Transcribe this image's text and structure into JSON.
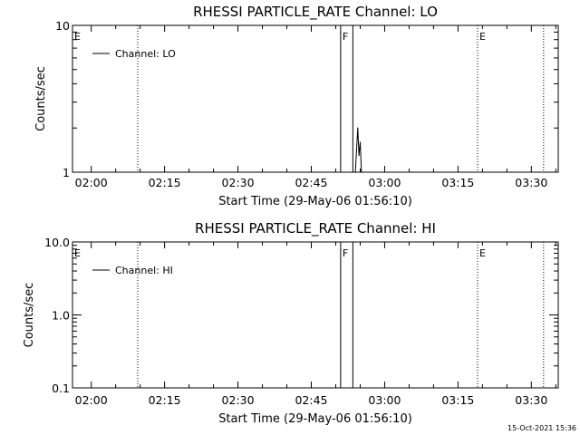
{
  "chart_data": [
    {
      "type": "line",
      "title": "RHESSI PARTICLE_RATE Channel: LO",
      "xlabel": "Start Time (29-May-06 01:56:10)",
      "ylabel": "Counts/sec",
      "yscale": "log",
      "xlim": [
        "01:56:10",
        "03:35:30"
      ],
      "ylim": [
        1,
        10
      ],
      "x_tick_labels": [
        "02:00",
        "02:15",
        "02:30",
        "02:45",
        "03:00",
        "03:15",
        "03:30"
      ],
      "y_tick_labels": [
        "1",
        "10"
      ],
      "legend": {
        "placement": "top-left",
        "entries": [
          "Channel: LO"
        ]
      },
      "markers": [
        {
          "label": "E",
          "time": "01:56:10",
          "style": "none"
        },
        {
          "label": "",
          "time": "02:09:30",
          "style": "dotted"
        },
        {
          "label": "F",
          "time": "02:51:00",
          "style": "solid"
        },
        {
          "label": "",
          "time": "02:53:30",
          "style": "solid"
        },
        {
          "label": "E",
          "time": "03:19:00",
          "style": "dotted"
        },
        {
          "label": "",
          "time": "03:32:30",
          "style": "dotted"
        }
      ],
      "series": [
        {
          "name": "Channel: LO",
          "x": [
            "02:54:00",
            "02:54:15",
            "02:54:30",
            "02:54:45",
            "02:55:00",
            "02:55:15"
          ],
          "values": [
            1.0,
            1.4,
            2.0,
            1.3,
            1.6,
            1.0
          ]
        }
      ]
    },
    {
      "type": "line",
      "title": "RHESSI PARTICLE_RATE Channel: HI",
      "xlabel": "Start Time (29-May-06 01:56:10)",
      "ylabel": "Counts/sec",
      "yscale": "log",
      "xlim": [
        "01:56:10",
        "03:35:30"
      ],
      "ylim": [
        0.1,
        10.0
      ],
      "x_tick_labels": [
        "02:00",
        "02:15",
        "02:30",
        "02:45",
        "03:00",
        "03:15",
        "03:30"
      ],
      "y_tick_labels": [
        "0.1",
        "1.0",
        "10.0"
      ],
      "legend": {
        "placement": "top-left",
        "entries": [
          "Channel: HI"
        ]
      },
      "markers": [
        {
          "label": "E",
          "time": "01:56:10",
          "style": "none"
        },
        {
          "label": "",
          "time": "02:09:30",
          "style": "dotted"
        },
        {
          "label": "F",
          "time": "02:51:00",
          "style": "solid"
        },
        {
          "label": "",
          "time": "02:53:30",
          "style": "solid"
        },
        {
          "label": "E",
          "time": "03:19:00",
          "style": "dotted"
        },
        {
          "label": "",
          "time": "03:32:30",
          "style": "dotted"
        }
      ],
      "series": [
        {
          "name": "Channel: HI",
          "x": [],
          "values": []
        }
      ]
    }
  ],
  "footer": {
    "timestamp": "15-Oct-2021 15:36"
  }
}
